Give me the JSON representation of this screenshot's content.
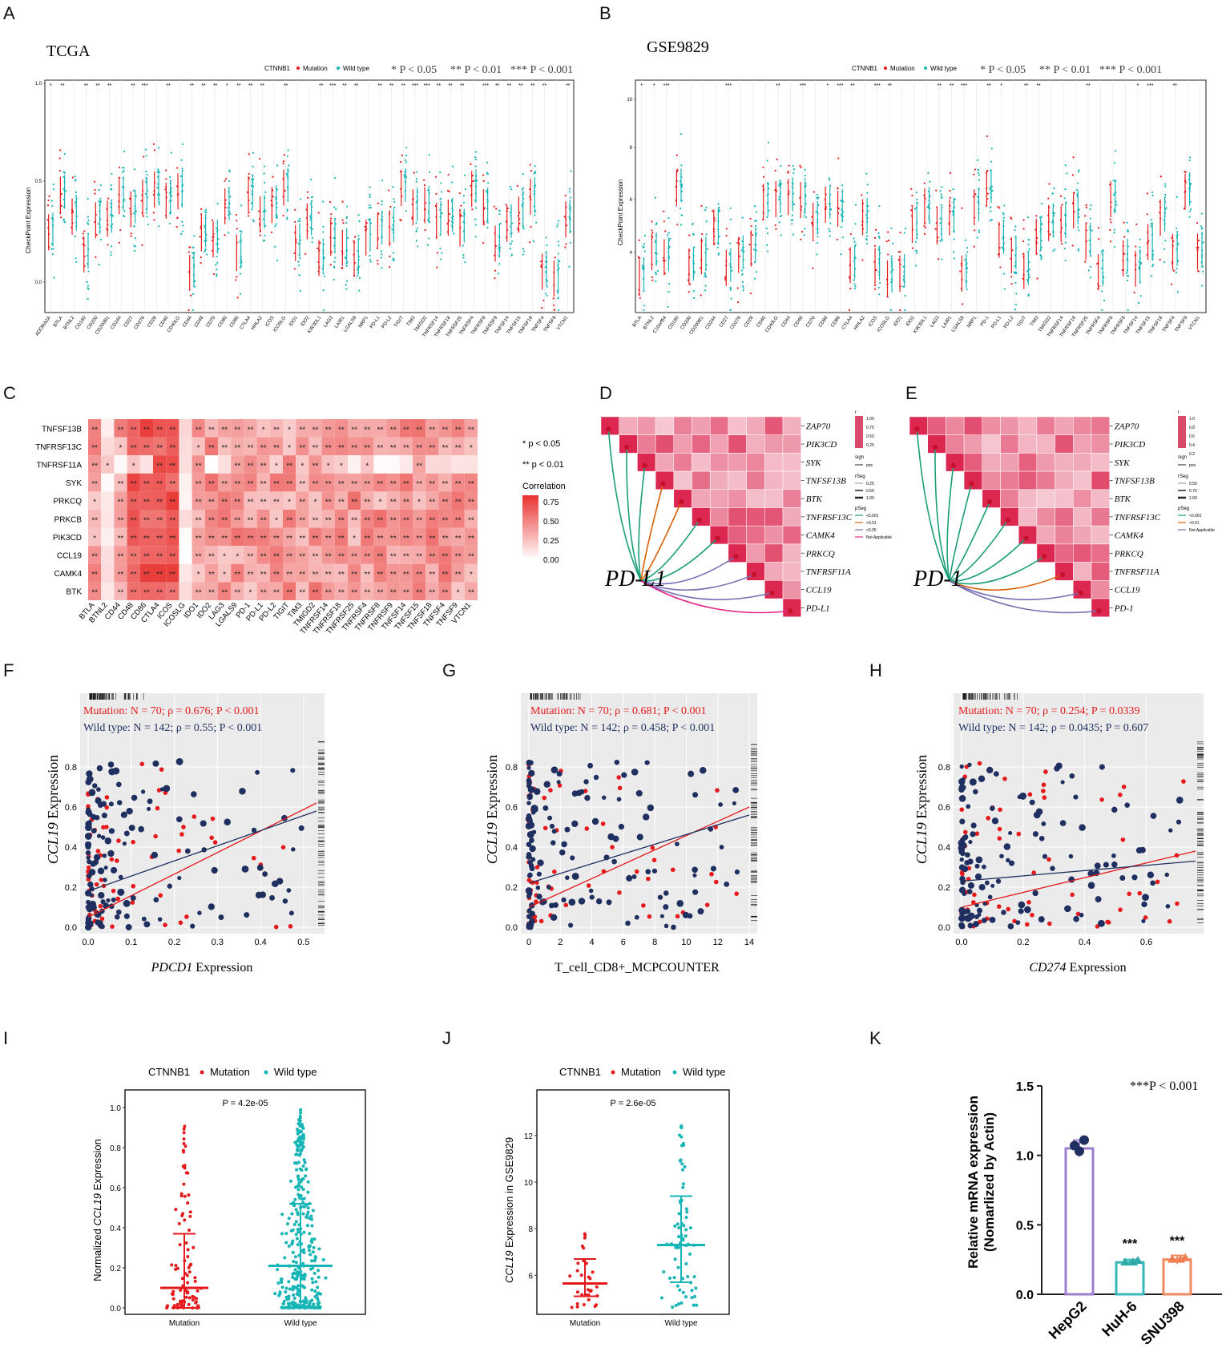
{
  "panel_labels": [
    "A",
    "B",
    "C",
    "D",
    "E",
    "F",
    "G",
    "H",
    "I",
    "J",
    "K"
  ],
  "colors": {
    "mutation": "#e41a1c",
    "wild_type": "#17b5b5",
    "navy": "#1f2f5f",
    "heat": "#e8322f",
    "purple": "#9b7fcc",
    "teal": "#37b8b8",
    "orange": "#f08a5d"
  },
  "panelA": {
    "title": "TCGA",
    "legend_title": "CTNNB1",
    "legend_mut": "Mutation",
    "legend_wt": "Wild type",
    "sig1": "* P < 0.05",
    "sig2": "** P < 0.01",
    "sig3": "*** P < 0.001",
    "ylabel": "CheckPoint Expression",
    "yticks": [
      "0.0",
      "0.5",
      "1.0"
    ],
    "genes": [
      "ADORA2A",
      "BTLA",
      "BTNL2",
      "CD160",
      "CD200",
      "CD200R1",
      "CD244",
      "CD27",
      "CD276",
      "CD28",
      "CD40",
      "CD40LG",
      "CD44",
      "CD48",
      "CD70",
      "CD80",
      "CD86",
      "CTLA4",
      "HHLA2",
      "ICOS",
      "ICOSLG",
      "IDO1",
      "IDO2",
      "KIR3DL1",
      "LAG3",
      "LAIR1",
      "LGALS9",
      "NRP1",
      "PD-L1",
      "PD-L2",
      "TIGIT",
      "TIM3",
      "TMIGD2",
      "TNFRSF14",
      "TNFRSF18",
      "TNFRSF25",
      "TNFRSF4",
      "TNFRSF8",
      "TNFRSF9",
      "TNFSF14",
      "TNFSF15",
      "TNFSF18",
      "TNFSF4",
      "TNFSF9",
      "VTCN1"
    ],
    "stars": [
      "*",
      "**",
      "",
      "**",
      "**",
      "**",
      "",
      "**",
      "***",
      "",
      "**",
      "",
      "**",
      "**",
      "**",
      "*",
      "**",
      "**",
      "**",
      "",
      "**",
      "",
      "",
      "**",
      "***",
      "**",
      "**",
      "",
      "**",
      "**",
      "**",
      "***",
      "***",
      "**",
      "**",
      "**",
      "",
      "***",
      "**",
      "**",
      "**",
      "**",
      "**",
      "",
      "**"
    ]
  },
  "panelB": {
    "title": "GSE9829",
    "legend_title": "CTNNB1",
    "legend_mut": "Mutation",
    "legend_wt": "Wild type",
    "sig1": "* P < 0.05",
    "sig2": "** P < 0.01",
    "sig3": "*** P < 0.001",
    "ylabel": "CheckPoint Expression",
    "yticks": [
      "4",
      "6",
      "8",
      "10"
    ],
    "genes": [
      "BTLA",
      "BTNL2",
      "C10orf54",
      "CD160",
      "CD200",
      "CD200R1",
      "CD244",
      "CD27",
      "CD276",
      "CD28",
      "CD40",
      "CD40LG",
      "CD44",
      "CD48",
      "CD70",
      "CD80",
      "CD86",
      "CTLA4",
      "HHLA2",
      "ICOS",
      "ICOSLG",
      "IDO1",
      "IDO2",
      "KIR3DL1",
      "LAG3",
      "LAIR1",
      "LGALS9",
      "NRP1",
      "PD-1",
      "PD-L1",
      "PD-L2",
      "TIGIT",
      "TIM3",
      "TMIGD2",
      "TNFRSF14",
      "TNFRSF18",
      "TNFRSF25",
      "TNFRSF4",
      "TNFRSF8",
      "TNFRSF9",
      "TNFSF14",
      "TNFSF15",
      "TNFSF18",
      "TNFSF4",
      "TNFSF9",
      "VTCN1"
    ],
    "stars": [
      "*",
      "*",
      "***",
      "",
      "",
      "",
      "",
      "***",
      "",
      "",
      "",
      "**",
      "",
      "***",
      "",
      "*",
      "***",
      "**",
      "",
      "***",
      "**",
      "",
      "",
      "",
      "**",
      "**",
      "***",
      "",
      "**",
      "*",
      "",
      "**",
      "**",
      "",
      "",
      "",
      "**",
      "",
      "",
      "",
      "*",
      "***",
      "",
      "**",
      "",
      ""
    ]
  },
  "panelC": {
    "rows": [
      "TNFSF13B",
      "TNFRSF13C",
      "TNFRSF11A",
      "SYK",
      "PRKCQ",
      "PRKCB",
      "PIK3CD",
      "CCL19",
      "CAMK4",
      "BTK"
    ],
    "cols": [
      "BTLA",
      "BTNL2",
      "CD44",
      "CD48",
      "CD86",
      "CTLA4",
      "ICOS",
      "ICOSLG",
      "IDO1",
      "IDO2",
      "LAG3",
      "LGALS9",
      "PD-1",
      "PD-L1",
      "PD-L2",
      "TIGIT",
      "TIM3",
      "TMIGD2",
      "TNFRSF14",
      "TNFRSF18",
      "TNFRSF25",
      "TNFRSF4",
      "TNFRSF8",
      "TNFRSF9",
      "TNFSF14",
      "TNFSF15",
      "TNFSF18",
      "TNFSF4",
      "TNFSF9",
      "VTCN1"
    ],
    "legend_p1": "* p < 0.05",
    "legend_p2": "** p < 0.01",
    "legend_title": "Correlation",
    "legend_ticks": [
      "0.75",
      "0.50",
      "0.25",
      "0.00"
    ]
  },
  "panelD": {
    "label": "PD-L1",
    "genes": [
      "ZAP70",
      "PIK3CD",
      "SYK",
      "TNFSF13B",
      "BTK",
      "TNFRSF13C",
      "CAMK4",
      "PRKCQ",
      "TNFRSF11A",
      "CCL19",
      "PD-L1"
    ],
    "legend_r": "r",
    "r_ticks": [
      "1.00",
      "0.75",
      "0.50",
      "0.25"
    ],
    "legend_sign": "sign",
    "sign_pos": "pos",
    "legend_rseg": "rSeg",
    "rseg_ticks": [
      "0.25",
      "0.50",
      "1.00"
    ],
    "legend_pseg": "pSeg",
    "pseg_items": [
      "<0.001",
      "<0.01",
      "<0.05",
      "Not Applicable"
    ]
  },
  "panelE": {
    "label": "PD-1",
    "genes": [
      "ZAP70",
      "PIK3CD",
      "SYK",
      "TNFSF13B",
      "BTK",
      "TNFRSF13C",
      "CAMK4",
      "PRKCQ",
      "TNFRSF11A",
      "CCL19",
      "PD-1"
    ],
    "legend_sign": "sign",
    "sign_pos": "pos",
    "legend_rseg": "rSeg",
    "rseg_ticks": [
      "0.50",
      "0.75",
      "1.00"
    ],
    "legend_r": "r",
    "r_ticks": [
      "1.0",
      "0.8",
      "0.6",
      "0.4",
      "0.2"
    ],
    "legend_pseg": "pSeg",
    "pseg_items": [
      "<0.001",
      "<0.01",
      "Not Applicable"
    ]
  },
  "panelF": {
    "mut_text": "Mutation: N = 70; ρ = 0.676; P < 0.001",
    "wt_text": "Wild type: N = 142; ρ = 0.55; P < 0.001",
    "ylabel_gene": "CCL19",
    "ylabel_rest": " Expression",
    "xlabel_gene": "PDCD1",
    "xlabel_rest": " Expression",
    "xticks": [
      "0.0",
      "0.1",
      "0.2",
      "0.3",
      "0.4",
      "0.5"
    ],
    "yticks": [
      "0.0",
      "0.2",
      "0.4",
      "0.6",
      "0.8"
    ]
  },
  "panelG": {
    "mut_text": "Mutation: N = 70; ρ = 0.681; P < 0.001",
    "wt_text": "Wild type: N = 142; ρ = 0.458; P < 0.001",
    "ylabel_gene": "CCL19",
    "ylabel_rest": " Expression",
    "xlabel": "T_cell_CD8+_MCPCOUNTER",
    "xticks": [
      "0",
      "2",
      "4",
      "6",
      "8",
      "10",
      "12",
      "14"
    ],
    "yticks": [
      "0.0",
      "0.2",
      "0.4",
      "0.6",
      "0.8"
    ]
  },
  "panelH": {
    "mut_text": "Mutation: N = 70; ρ = 0.254; P = 0.0339",
    "wt_text": "Wild type: N = 142; ρ = 0.0435; P = 0.607",
    "ylabel_gene": "CCL19",
    "ylabel_rest": " Expression",
    "xlabel_gene": "CD274",
    "xlabel_rest": " Expression",
    "xticks": [
      "0.0",
      "0.2",
      "0.4",
      "0.6"
    ],
    "yticks": [
      "0.0",
      "0.2",
      "0.4",
      "0.6",
      "0.8"
    ]
  },
  "panelI": {
    "legend_title": "CTNNB1",
    "legend_mut": "Mutation",
    "legend_wt": "Wild type",
    "pval": "P = 4.2e-05",
    "ylabel_pre": "Normalized ",
    "ylabel_gene": "CCL19",
    "ylabel_post": " Expression",
    "yticks": [
      "0.0",
      "0.2",
      "0.4",
      "0.6",
      "0.8",
      "1.0"
    ],
    "xcats": [
      "Mutation",
      "Wild type"
    ]
  },
  "panelJ": {
    "legend_title": "CTNNB1",
    "legend_mut": "Mutation",
    "legend_wt": "Wild type",
    "pval": "P = 2.6e-05",
    "ylabel_gene": "CCL19",
    "ylabel_rest": " Expression in GSE9829",
    "yticks": [
      "6",
      "8",
      "10",
      "12"
    ],
    "xcats": [
      "Mutation",
      "Wild type"
    ]
  },
  "chart_data": {
    "type": "bar",
    "title": "",
    "ylabel_line1": "Relative mRNA expression",
    "ylabel_line2": "(Nomarlized by Actin)",
    "sig_note": "***P < 0.001",
    "categories": [
      "HepG2",
      "HuH-6",
      "SNU398"
    ],
    "values": [
      1.05,
      0.23,
      0.25
    ],
    "errors": [
      0.06,
      0.02,
      0.03
    ],
    "stars": [
      "",
      "***",
      "***"
    ],
    "ylim": [
      0,
      1.5
    ],
    "yticks": [
      "0.0",
      "0.5",
      "1.0",
      "1.5"
    ]
  }
}
